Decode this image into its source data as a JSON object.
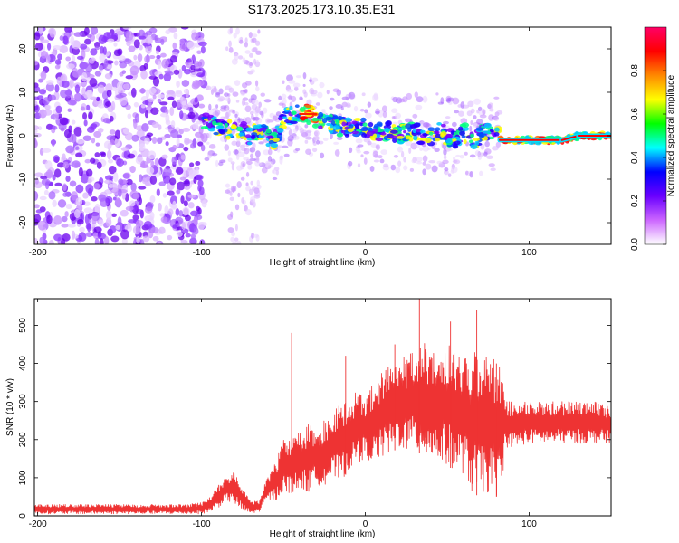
{
  "title": "S173.2025.173.10.35.E31",
  "chart_data": [
    {
      "type": "heatmap",
      "xlabel": "Height of straight line (km)",
      "ylabel": "Frequency (Hz)",
      "xlim": [
        -202,
        150
      ],
      "ylim": [
        -25,
        25
      ],
      "xticks": [
        -200,
        -100,
        0,
        100
      ],
      "yticks": [
        -20,
        -10,
        0,
        10,
        20
      ],
      "colorbar": {
        "label": "Normalized spectral amplitude",
        "ticks": [
          0.0,
          0.2,
          0.4,
          0.6,
          0.8
        ],
        "range": [
          0,
          1
        ],
        "colors": [
          "#ffffff",
          "#cc66ff",
          "#6a00ff",
          "#0000ff",
          "#00ffff",
          "#00ff00",
          "#ffff00",
          "#ff8800",
          "#ff0000",
          "#ff0066"
        ]
      },
      "ridge": {
        "x": [
          -100,
          -95,
          -90,
          -85,
          -80,
          -75,
          -70,
          -65,
          -60,
          -55,
          -50,
          -45,
          -40,
          -35,
          -30,
          -25,
          -20,
          -15,
          -10,
          -5,
          0,
          5,
          10,
          15,
          20,
          25,
          30,
          35,
          40,
          45,
          50,
          55,
          60,
          65,
          70,
          75,
          80,
          85,
          90,
          100,
          110,
          120,
          130,
          140,
          150
        ],
        "y": [
          4,
          3,
          2,
          1,
          2,
          1,
          0,
          1,
          0,
          -1,
          4,
          5,
          5,
          5,
          4,
          3,
          3,
          2,
          2,
          2,
          2,
          1,
          1,
          1,
          0,
          1,
          1,
          0,
          0,
          1,
          0,
          -1,
          1,
          -1,
          0,
          1,
          0,
          -1,
          -1,
          -1,
          -1,
          -1,
          0,
          0,
          0
        ]
      }
    },
    {
      "type": "line",
      "xlabel": "Height of straight line (km)",
      "ylabel": "SNR (10 * v/v)",
      "xlim": [
        -202,
        150
      ],
      "ylim": [
        0,
        570
      ],
      "xticks": [
        -200,
        -100,
        0,
        100
      ],
      "yticks": [
        0,
        100,
        200,
        300,
        400,
        500
      ],
      "color": "#ee3333",
      "envelope": {
        "x": [
          -202,
          -150,
          -110,
          -100,
          -95,
          -90,
          -85,
          -80,
          -75,
          -70,
          -65,
          -60,
          -55,
          -50,
          -45,
          -40,
          -35,
          -30,
          -25,
          -20,
          -15,
          -10,
          -5,
          0,
          5,
          10,
          15,
          20,
          25,
          30,
          35,
          40,
          45,
          50,
          55,
          60,
          65,
          70,
          75,
          80,
          83,
          85,
          90,
          100,
          110,
          120,
          130,
          140,
          150
        ],
        "low": [
          5,
          5,
          5,
          5,
          10,
          20,
          40,
          30,
          10,
          5,
          10,
          40,
          40,
          60,
          60,
          70,
          60,
          80,
          80,
          100,
          90,
          120,
          140,
          150,
          140,
          150,
          160,
          180,
          170,
          170,
          160,
          150,
          140,
          130,
          120,
          110,
          60,
          50,
          60,
          50,
          40,
          180,
          180,
          190,
          190,
          190,
          190,
          190,
          190
        ],
        "high": [
          30,
          30,
          30,
          35,
          50,
          80,
          100,
          120,
          80,
          40,
          40,
          100,
          140,
          200,
          200,
          220,
          240,
          230,
          250,
          270,
          300,
          300,
          330,
          320,
          350,
          380,
          400,
          410,
          420,
          440,
          460,
          440,
          420,
          460,
          440,
          420,
          440,
          430,
          420,
          410,
          390,
          300,
          300,
          300,
          300,
          300,
          300,
          300,
          290
        ],
        "spikes": [
          {
            "x": -45,
            "y": 480
          },
          {
            "x": -12,
            "y": 420
          },
          {
            "x": 18,
            "y": 450
          },
          {
            "x": 33,
            "y": 570
          },
          {
            "x": 52,
            "y": 510
          },
          {
            "x": 68,
            "y": 540
          },
          {
            "x": 80,
            "y": 400
          }
        ]
      }
    }
  ]
}
